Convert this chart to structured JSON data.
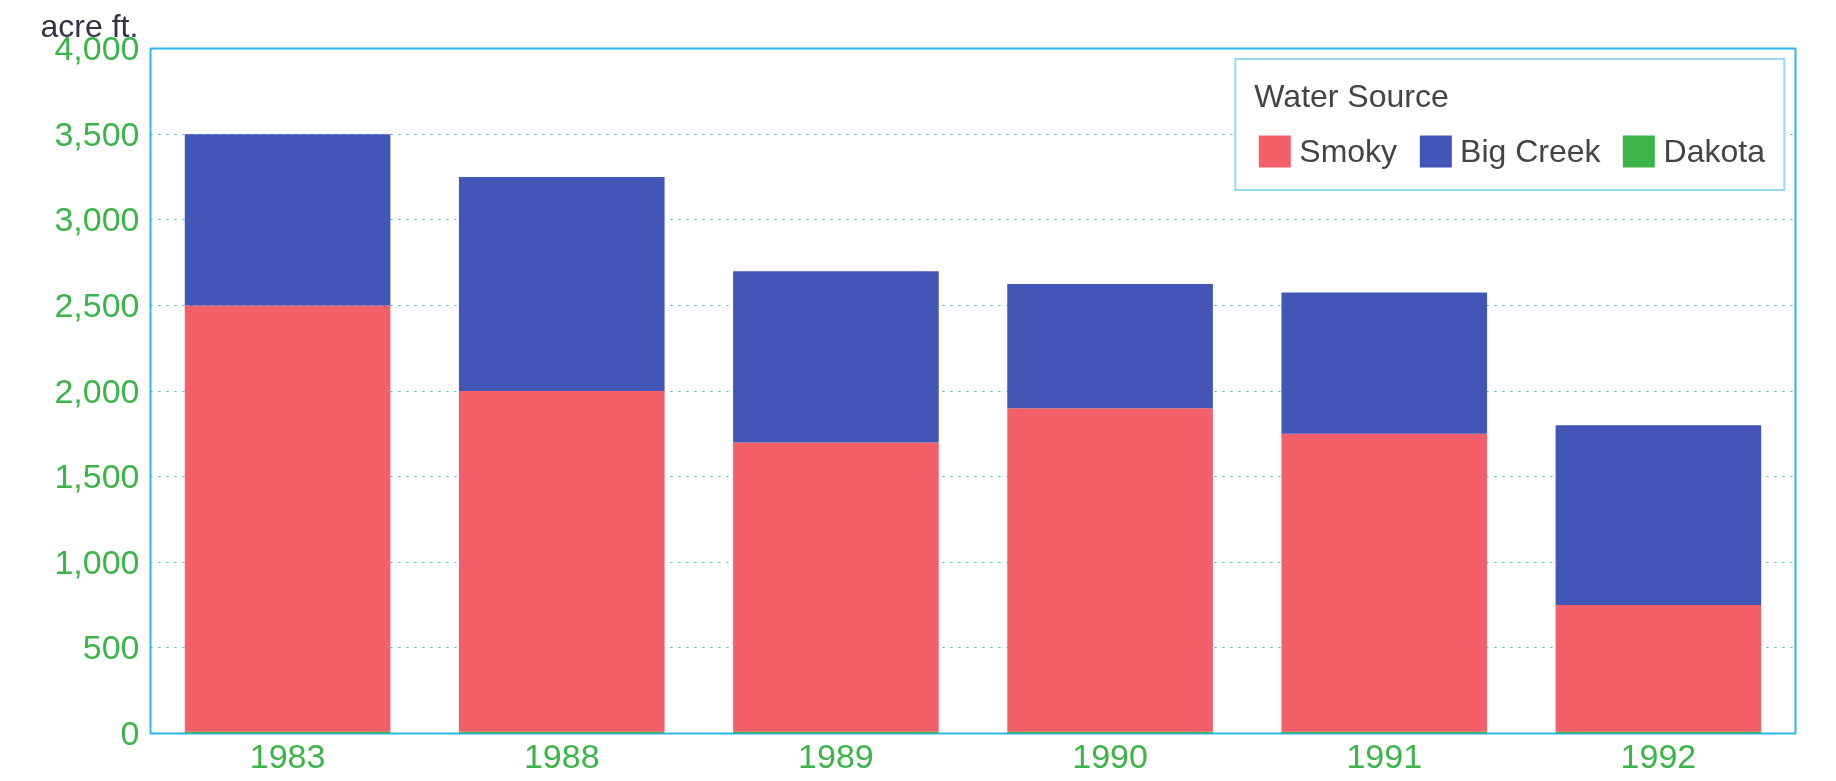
{
  "chart_data": {
    "type": "bar",
    "stacked": true,
    "ylabel": "acre ft.",
    "legend_title": "Water Source",
    "categories": [
      "1983",
      "1988",
      "1989",
      "1990",
      "1991",
      "1992"
    ],
    "series": [
      {
        "name": "Dakota",
        "color": "#3cb44a",
        "values": [
          10,
          10,
          10,
          10,
          10,
          10
        ]
      },
      {
        "name": "Smoky",
        "color": "#f4606a",
        "values": [
          2490,
          1990,
          1690,
          1890,
          1740,
          740
        ]
      },
      {
        "name": "Big Creek",
        "color": "#4455b8",
        "values": [
          1000,
          1250,
          1000,
          725,
          825,
          1050
        ]
      }
    ],
    "ylim": [
      0,
      4000
    ],
    "yticks": [
      {
        "value": 0,
        "label": "0"
      },
      {
        "value": 500,
        "label": "500"
      },
      {
        "value": 1000,
        "label": "1,000"
      },
      {
        "value": 1500,
        "label": "1,500"
      },
      {
        "value": 2000,
        "label": "2,000"
      },
      {
        "value": 2500,
        "label": "2,500"
      },
      {
        "value": 3000,
        "label": "3,000"
      },
      {
        "value": 3500,
        "label": "3,500"
      },
      {
        "value": 4000,
        "label": "4,000"
      }
    ],
    "grid": "y",
    "legend": "top right"
  }
}
